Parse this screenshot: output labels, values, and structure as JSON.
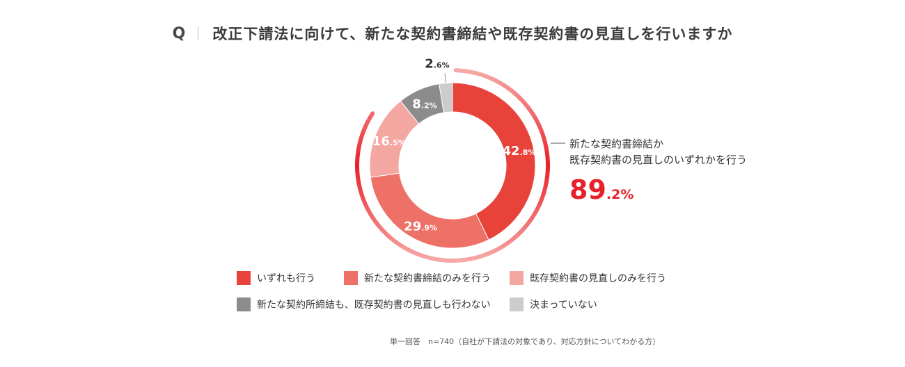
{
  "question": {
    "mark": "Q",
    "text": "改正下請法に向けて、新たな契約書締結や既存契約書の見直しを行いますか"
  },
  "chart_data": {
    "type": "pie",
    "style": "donut",
    "categories": [
      "いずれも行う",
      "新たな契約書締結のみを行う",
      "既存契約書の見直しのみを行う",
      "新たな契約所締結も、既存契約書の見直しも行わない",
      "決まっていない"
    ],
    "values": [
      42.8,
      29.9,
      16.5,
      8.2,
      2.6
    ],
    "value_labels": [
      {
        "int": "42",
        "dec": ".8%"
      },
      {
        "int": "29",
        "dec": ".9%"
      },
      {
        "int": "16",
        "dec": ".5%"
      },
      {
        "int": "8",
        "dec": ".2%"
      },
      {
        "int": "2",
        "dec": ".6%"
      }
    ],
    "colors": [
      "#e8433a",
      "#ee7168",
      "#f4a6a1",
      "#8c8c8c",
      "#cccccc"
    ],
    "summary": {
      "label_line1": "新たな契約書締結か",
      "label_line2": "既存契約書の見直しのいずれかを行う",
      "value": 89.2,
      "value_int": "89",
      "value_dec": ".2%",
      "color": "#e8202a"
    }
  },
  "legend": {
    "items": [
      {
        "label": "いずれも行う",
        "color": "#e8433a"
      },
      {
        "label": "新たな契約書締結のみを行う",
        "color": "#ee7168"
      },
      {
        "label": "既存契約書の見直しのみを行う",
        "color": "#f4a6a1"
      },
      {
        "label": "新たな契約所締結も、既存契約書の見直しも行わない",
        "color": "#8c8c8c"
      },
      {
        "label": "決まっていない",
        "color": "#cccccc"
      }
    ]
  },
  "note": "単一回答　n=740（自社が下請法の対象であり、対応方針についてわかる方）"
}
